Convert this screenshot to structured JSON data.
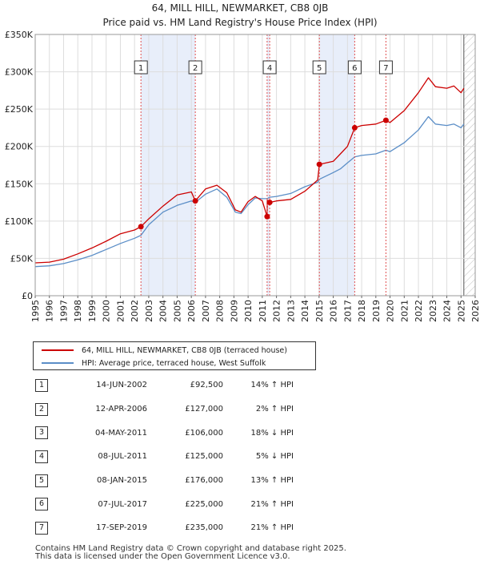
{
  "title_line1": "64, MILL HILL, NEWMARKET, CB8 0JB",
  "title_line2": "Price paid vs. HM Land Registry's House Price Index (HPI)",
  "chart_data": {
    "type": "line",
    "title": "64, MILL HILL, NEWMARKET, CB8 0JB — Price paid vs. HM Land Registry's House Price Index (HPI)",
    "xlim": [
      1995,
      2026
    ],
    "ylim": [
      0,
      350000
    ],
    "y_ticks": [
      0,
      50000,
      100000,
      150000,
      200000,
      250000,
      300000,
      350000
    ],
    "y_tick_labels": [
      "£0",
      "£50K",
      "£100K",
      "£150K",
      "£200K",
      "£250K",
      "£300K",
      "£350K"
    ],
    "x_ticks": [
      1995,
      1996,
      1997,
      1998,
      1999,
      2000,
      2001,
      2002,
      2003,
      2004,
      2005,
      2006,
      2007,
      2008,
      2009,
      2010,
      2011,
      2012,
      2013,
      2014,
      2015,
      2016,
      2017,
      2018,
      2019,
      2020,
      2021,
      2022,
      2023,
      2024,
      2025,
      2026
    ],
    "x_tick_labels": [
      "1995",
      "1996",
      "1997",
      "1998",
      "1999",
      "2000",
      "2001",
      "2002",
      "2003",
      "2004",
      "2005",
      "2006",
      "2007",
      "2008",
      "2009",
      "2010",
      "2011",
      "2012",
      "2013",
      "2014",
      "2015",
      "2016",
      "2017",
      "2018",
      "2019",
      "2020",
      "2021",
      "2022",
      "2023",
      "2024",
      "2025",
      "2026"
    ],
    "grid": true,
    "series": [
      {
        "name": "64, MILL HILL, NEWMARKET, CB8 0JB (terraced house)",
        "color": "#cc0000",
        "x": [
          1995.0,
          1996.0,
          1997.0,
          1998.0,
          1999.0,
          2000.0,
          2001.0,
          2002.0,
          2002.45,
          2003.0,
          2004.0,
          2005.0,
          2006.0,
          2006.28,
          2007.0,
          2007.8,
          2008.5,
          2009.1,
          2009.5,
          2010.0,
          2010.5,
          2011.0,
          2011.34,
          2011.35,
          2011.52,
          2012.0,
          2013.0,
          2014.0,
          2014.9,
          2015.02,
          2016.0,
          2016.5,
          2017.0,
          2017.51,
          2018.0,
          2019.0,
          2019.71,
          2020.0,
          2021.0,
          2022.0,
          2022.7,
          2023.2,
          2024.0,
          2024.5,
          2025.0,
          2025.2
        ],
        "values": [
          44000,
          45000,
          49000,
          56000,
          64000,
          73000,
          83000,
          88000,
          92500,
          103000,
          120000,
          135000,
          139000,
          127000,
          143000,
          148000,
          138000,
          115000,
          112000,
          126000,
          133000,
          127000,
          106000,
          128000,
          125000,
          127000,
          129000,
          140000,
          155000,
          176000,
          180000,
          190000,
          200000,
          225000,
          228000,
          230000,
          235000,
          232000,
          248000,
          272000,
          292000,
          280000,
          278000,
          281000,
          272000,
          278000
        ]
      },
      {
        "name": "HPI: Average price, terraced house, West Suffolk",
        "color": "#5b8ec7",
        "x": [
          1995.0,
          1996.0,
          1997.0,
          1998.0,
          1999.0,
          2000.0,
          2001.0,
          2002.0,
          2002.45,
          2003.0,
          2004.0,
          2005.0,
          2006.0,
          2006.28,
          2007.0,
          2007.8,
          2008.5,
          2009.1,
          2009.5,
          2010.0,
          2010.5,
          2011.0,
          2011.35,
          2011.52,
          2012.0,
          2013.0,
          2014.0,
          2014.9,
          2015.02,
          2016.0,
          2016.5,
          2017.0,
          2017.51,
          2018.0,
          2019.0,
          2019.71,
          2020.0,
          2021.0,
          2022.0,
          2022.7,
          2023.2,
          2024.0,
          2024.5,
          2025.0,
          2025.2
        ],
        "values": [
          39000,
          40000,
          43000,
          48000,
          54000,
          62000,
          70000,
          77000,
          81000,
          95000,
          112000,
          121000,
          127000,
          125000,
          136000,
          143000,
          132000,
          112000,
          110000,
          122000,
          131000,
          130000,
          130000,
          132000,
          133000,
          137000,
          146000,
          152000,
          156000,
          165000,
          170000,
          178000,
          186000,
          188000,
          190000,
          195000,
          193000,
          205000,
          222000,
          240000,
          230000,
          228000,
          230000,
          225000,
          230000
        ]
      }
    ],
    "sales": [
      {
        "label": "1",
        "x": 2002.45,
        "value": 92500
      },
      {
        "label": "2",
        "x": 2006.28,
        "value": 127000
      },
      {
        "label": "3",
        "x": 2011.34,
        "value": 106000
      },
      {
        "label": "4",
        "x": 2011.52,
        "value": 125000
      },
      {
        "label": "5",
        "x": 2015.02,
        "value": 176000
      },
      {
        "label": "6",
        "x": 2017.51,
        "value": 225000
      },
      {
        "label": "7",
        "x": 2019.71,
        "value": 235000
      }
    ],
    "label_boxes_shown": [
      "1",
      "2",
      "4",
      "5",
      "6",
      "7"
    ],
    "shaded_periods": [
      [
        2002.45,
        2006.28
      ],
      [
        2011.34,
        2011.52
      ],
      [
        2015.02,
        2017.51
      ]
    ],
    "forecast_start": 2025.2,
    "legend_location": "below-left"
  },
  "legend": {
    "property_label": "64, MILL HILL, NEWMARKET, CB8 0JB (terraced house)",
    "hpi_label": "HPI: Average price, terraced house, West Suffolk",
    "property_color": "#cc0000",
    "hpi_color": "#5b8ec7"
  },
  "table": [
    {
      "num": "1",
      "date": "14-JUN-2002",
      "price": "£92,500",
      "hpi": "14% ↑ HPI"
    },
    {
      "num": "2",
      "date": "12-APR-2006",
      "price": "£127,000",
      "hpi": "2% ↑ HPI"
    },
    {
      "num": "3",
      "date": "04-MAY-2011",
      "price": "£106,000",
      "hpi": "18% ↓ HPI"
    },
    {
      "num": "4",
      "date": "08-JUL-2011",
      "price": "£125,000",
      "hpi": "5% ↓ HPI"
    },
    {
      "num": "5",
      "date": "08-JAN-2015",
      "price": "£176,000",
      "hpi": "13% ↑ HPI"
    },
    {
      "num": "6",
      "date": "07-JUL-2017",
      "price": "£225,000",
      "hpi": "21% ↑ HPI"
    },
    {
      "num": "7",
      "date": "17-SEP-2019",
      "price": "£235,000",
      "hpi": "21% ↑ HPI"
    }
  ],
  "footer_line1": "Contains HM Land Registry data © Crown copyright and database right 2025.",
  "footer_line2": "This data is licensed under the Open Government Licence v3.0."
}
